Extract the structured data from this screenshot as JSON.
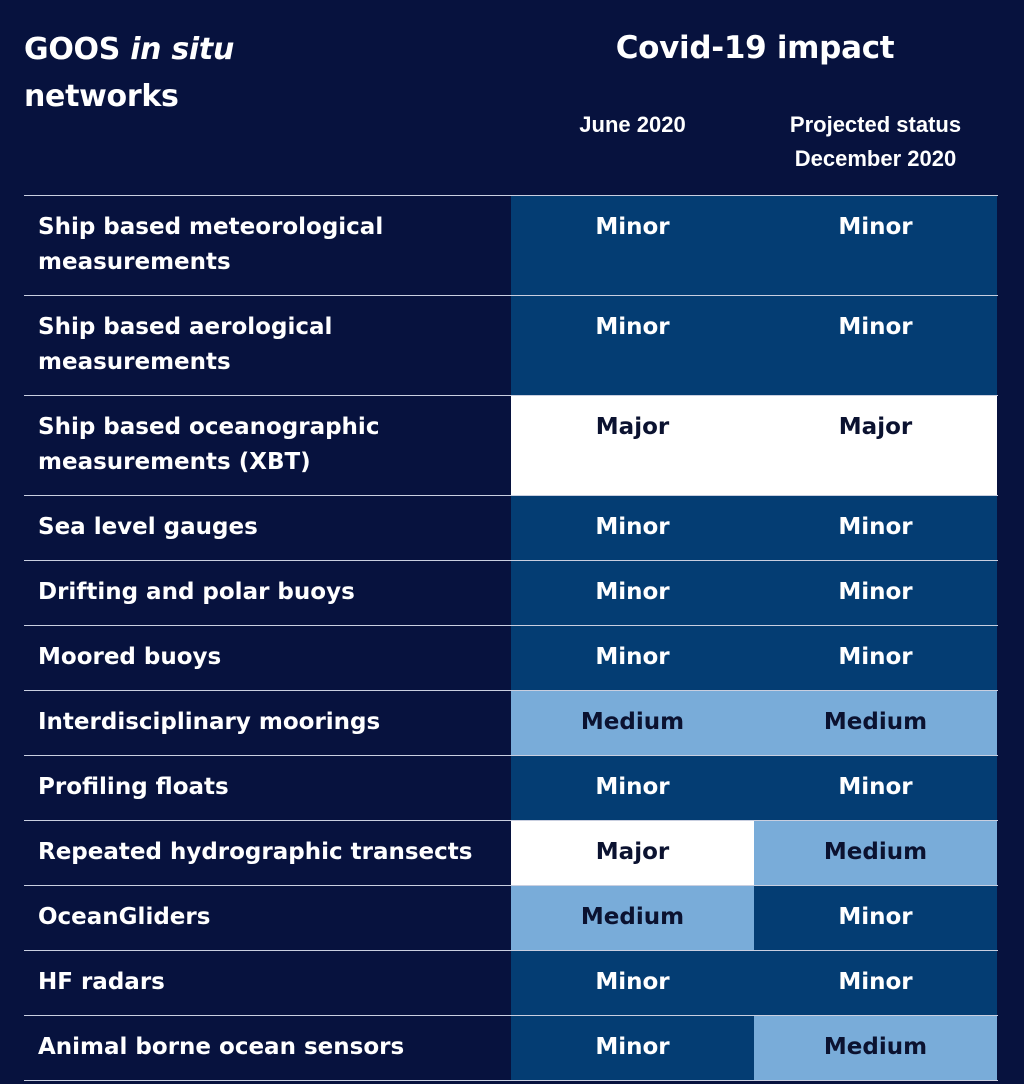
{
  "header": {
    "networks_title_part1": "GOOS ",
    "networks_title_italic": "in situ",
    "networks_title_part2": "networks",
    "impact_title": "Covid-19 impact",
    "col_june": "June 2020",
    "col_december_line1": "Projected status",
    "col_december_line2": "December 2020"
  },
  "colors": {
    "background": "#07123e",
    "minor": "#043d73",
    "medium": "#79acd9",
    "major": "#ffffff"
  },
  "rows": [
    {
      "network": "Ship based meteorological measurements",
      "june": "Minor",
      "december": "Minor"
    },
    {
      "network": "Ship based aerological measurements",
      "june": "Minor",
      "december": "Minor"
    },
    {
      "network": "Ship based oceanographic measurements (XBT)",
      "june": "Major",
      "december": "Major"
    },
    {
      "network": "Sea level gauges",
      "june": "Minor",
      "december": "Minor"
    },
    {
      "network": "Drifting and polar buoys",
      "june": "Minor",
      "december": "Minor"
    },
    {
      "network": "Moored buoys",
      "june": "Minor",
      "december": "Minor"
    },
    {
      "network": "Interdisciplinary moorings",
      "june": "Medium",
      "december": "Medium"
    },
    {
      "network": "Profiling floats",
      "june": "Minor",
      "december": "Minor"
    },
    {
      "network": "Repeated hydrographic transects",
      "june": "Major",
      "december": "Medium"
    },
    {
      "network": "OceanGliders",
      "june": "Medium",
      "december": "Minor"
    },
    {
      "network": "HF radars",
      "june": "Minor",
      "december": "Minor"
    },
    {
      "network": "Animal borne ocean sensors",
      "june": "Minor",
      "december": "Medium"
    }
  ]
}
